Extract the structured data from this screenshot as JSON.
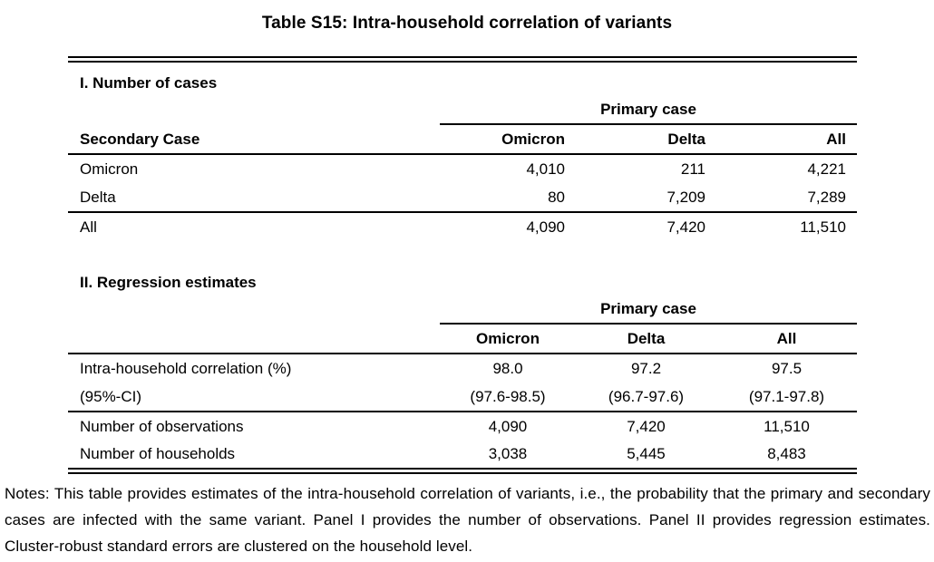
{
  "title": "Table S15: Intra-household correlation of variants",
  "panel1": {
    "label": "I. Number of cases",
    "spanner": "Primary case",
    "row_header": "Secondary Case",
    "columns": [
      "Omicron",
      "Delta",
      "All"
    ],
    "rows": [
      {
        "label": "Omicron",
        "values": [
          "4,010",
          "211",
          "4,221"
        ]
      },
      {
        "label": "Delta",
        "values": [
          "80",
          "7,209",
          "7,289"
        ]
      },
      {
        "label": "All",
        "values": [
          "4,090",
          "7,420",
          "11,510"
        ]
      }
    ]
  },
  "panel2": {
    "label": "II. Regression estimates",
    "spanner": "Primary case",
    "columns": [
      "Omicron",
      "Delta",
      "All"
    ],
    "rows": [
      {
        "label": "Intra-household correlation (%)",
        "values": [
          "98.0",
          "97.2",
          "97.5"
        ]
      },
      {
        "label": "(95%-CI)",
        "values": [
          "(97.6-98.5)",
          "(96.7-97.6)",
          "(97.1-97.8)"
        ]
      },
      {
        "label": "Number of observations",
        "values": [
          "4,090",
          "7,420",
          "11,510"
        ]
      },
      {
        "label": "Number of households",
        "values": [
          "3,038",
          "5,445",
          "8,483"
        ]
      }
    ]
  },
  "notes": "Notes: This table provides estimates of the intra-household correlation of variants, i.e., the probability that the primary and secondary cases are infected with the same variant. Panel I provides the number of observations. Panel II provides regression estimates. Cluster-robust standard errors are clustered on the household level.",
  "colors": {
    "text": "#000000",
    "background": "#ffffff",
    "rule": "#000000"
  },
  "chart_data": {
    "type": "table",
    "title": "Table S15: Intra-household correlation of variants",
    "panels": [
      {
        "name": "I. Number of cases",
        "column_group": "Primary case",
        "columns": [
          "Omicron",
          "Delta",
          "All"
        ],
        "row_dimension": "Secondary Case",
        "rows": [
          {
            "label": "Omicron",
            "values": [
              4010,
              211,
              4221
            ]
          },
          {
            "label": "Delta",
            "values": [
              80,
              7209,
              7289
            ]
          },
          {
            "label": "All",
            "values": [
              4090,
              7420,
              11510
            ]
          }
        ]
      },
      {
        "name": "II. Regression estimates",
        "column_group": "Primary case",
        "columns": [
          "Omicron",
          "Delta",
          "All"
        ],
        "rows": [
          {
            "label": "Intra-household correlation (%)",
            "values": [
              98.0,
              97.2,
              97.5
            ]
          },
          {
            "label": "(95%-CI)",
            "values": [
              "97.6-98.5",
              "96.7-97.6",
              "97.1-97.8"
            ]
          },
          {
            "label": "Number of observations",
            "values": [
              4090,
              7420,
              11510
            ]
          },
          {
            "label": "Number of households",
            "values": [
              3038,
              5445,
              8483
            ]
          }
        ]
      }
    ]
  }
}
